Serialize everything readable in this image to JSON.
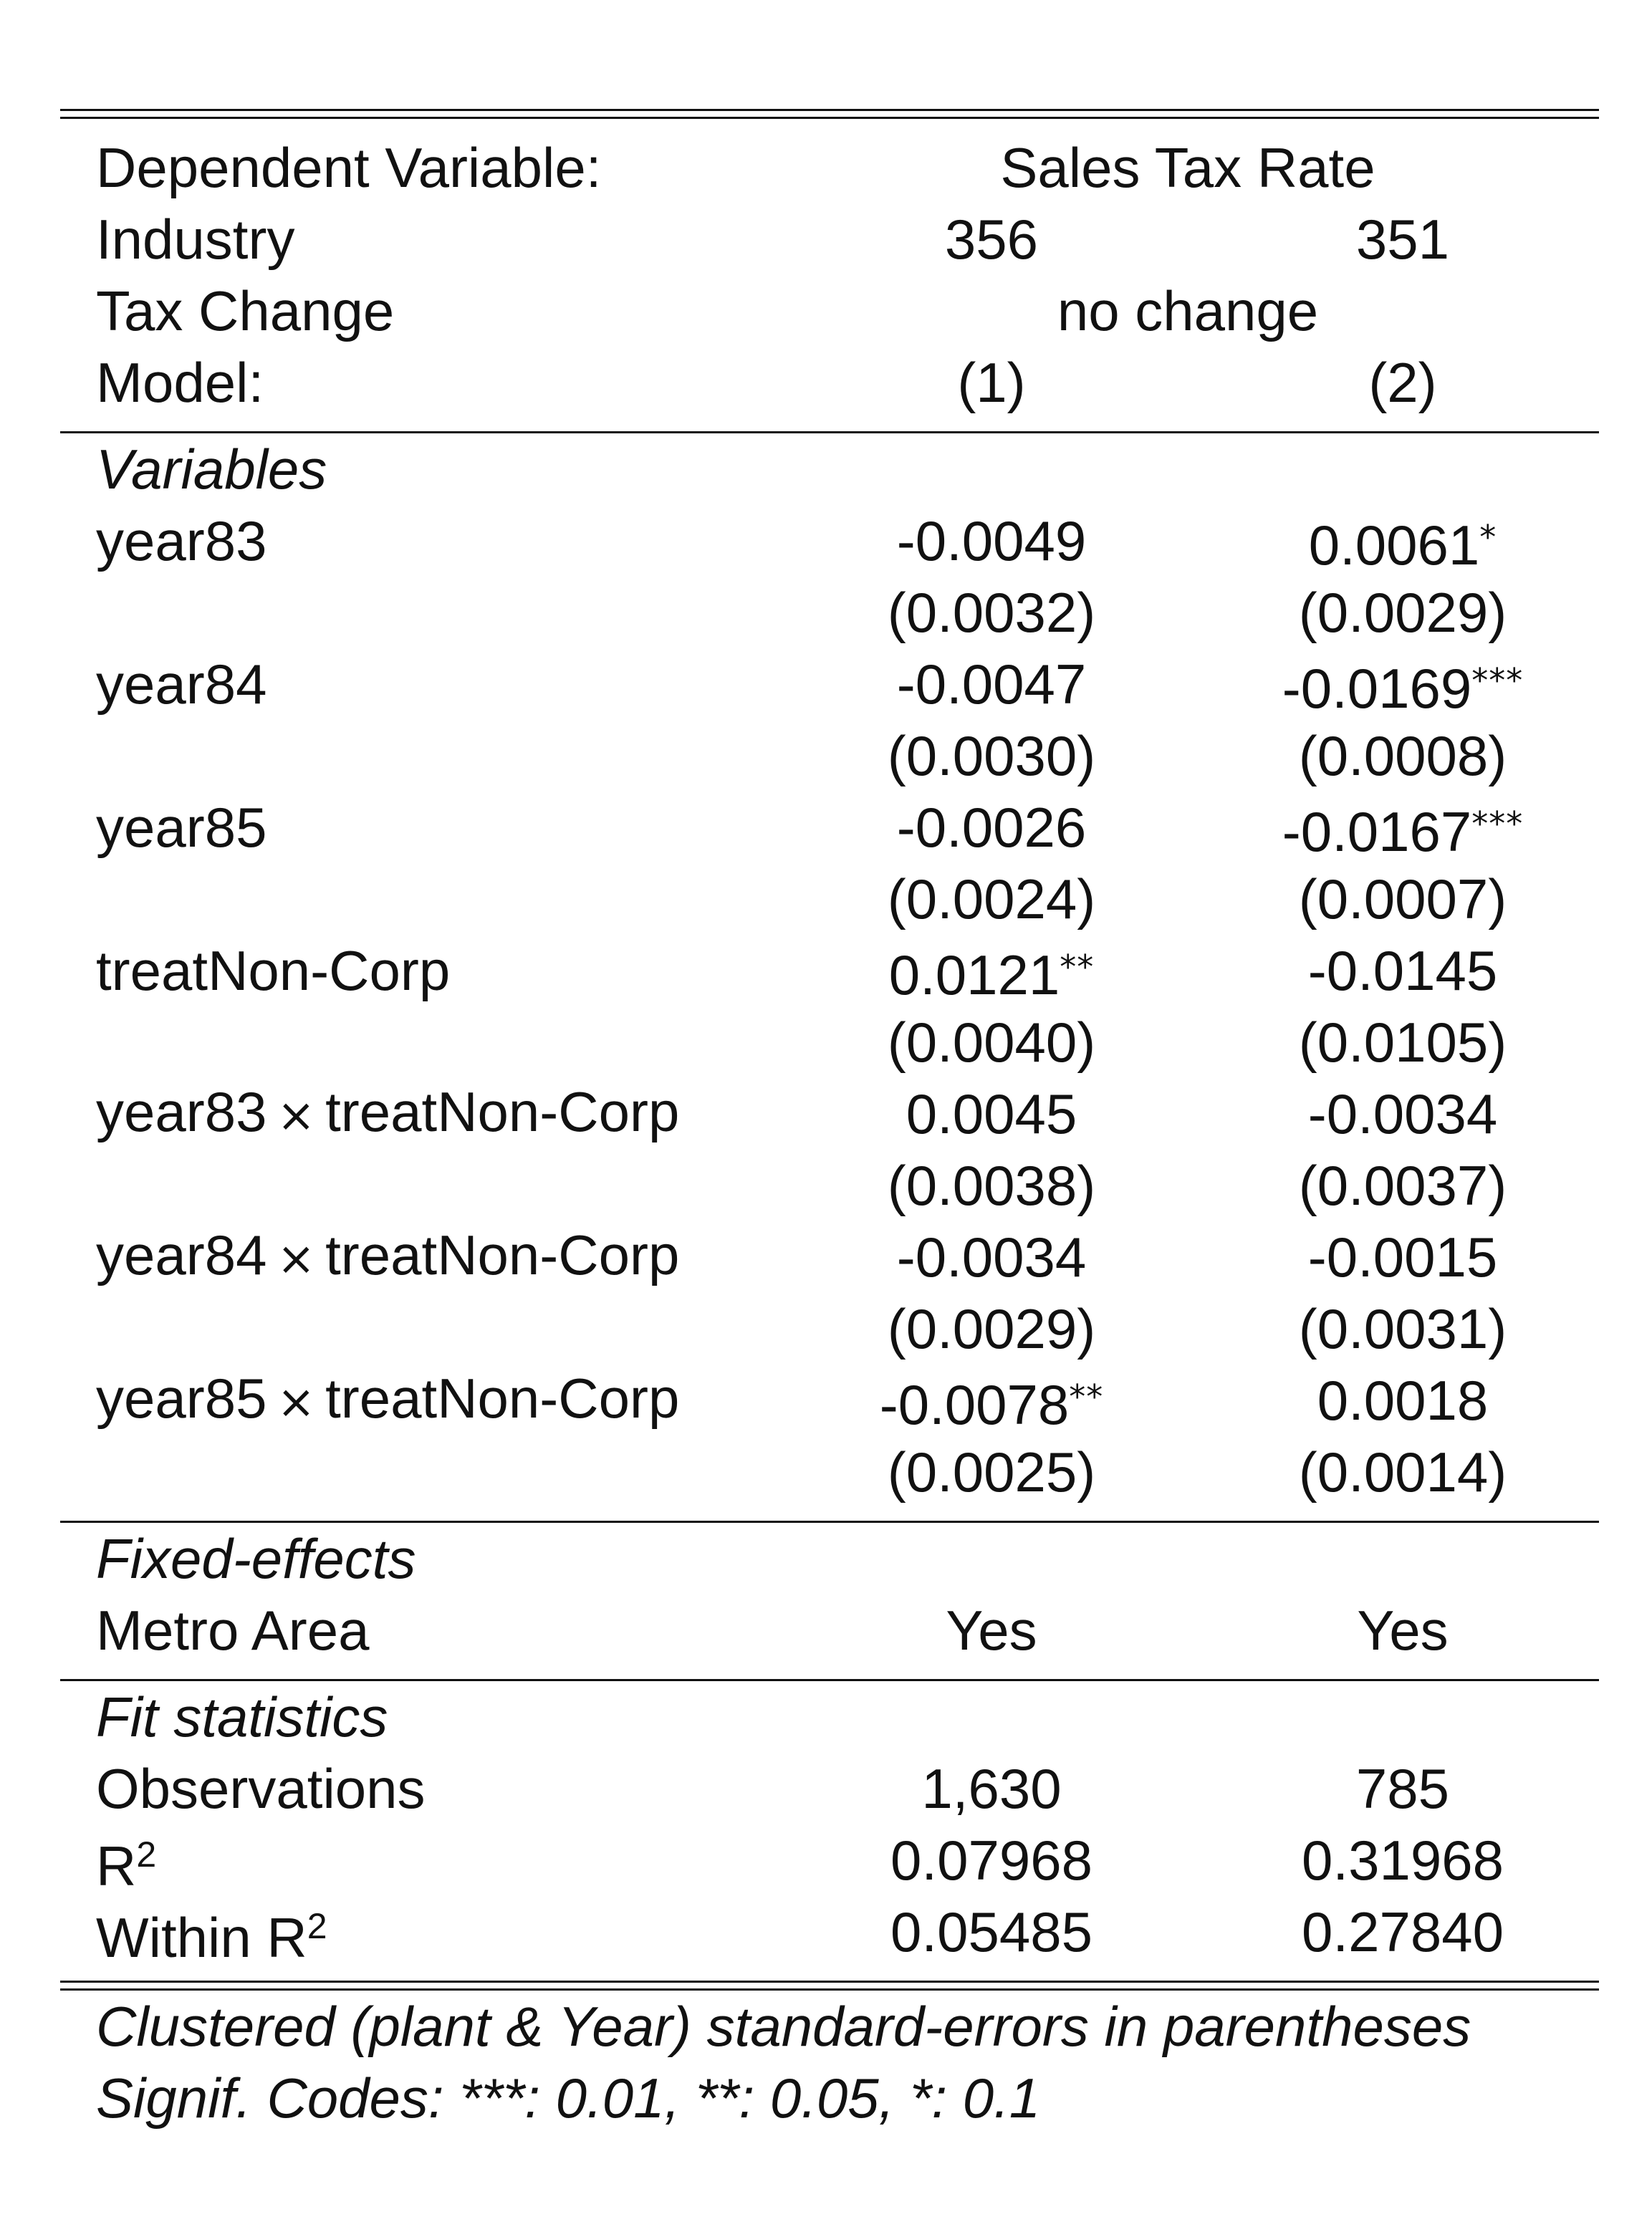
{
  "header": {
    "dep_var_label": "Dependent Variable:",
    "dep_var_value": "Sales Tax Rate",
    "industry_label": "Industry",
    "industry_values": [
      "356",
      "351"
    ],
    "tax_change_label": "Tax Change",
    "tax_change_value": "no change",
    "model_label": "Model:",
    "model_values": [
      "(1)",
      "(2)"
    ]
  },
  "variables": {
    "section_title": "Variables",
    "rows": [
      {
        "name": "year83",
        "interaction": "",
        "coef": [
          "-0.0049",
          "0.0061"
        ],
        "stars": [
          "",
          "*"
        ],
        "se": [
          "(0.0032)",
          "(0.0029)"
        ]
      },
      {
        "name": "year84",
        "interaction": "",
        "coef": [
          "-0.0047",
          "-0.0169"
        ],
        "stars": [
          "",
          "***"
        ],
        "se": [
          "(0.0030)",
          "(0.0008)"
        ]
      },
      {
        "name": "year85",
        "interaction": "",
        "coef": [
          "-0.0026",
          "-0.0167"
        ],
        "stars": [
          "",
          "***"
        ],
        "se": [
          "(0.0024)",
          "(0.0007)"
        ]
      },
      {
        "name": "treatNon-Corp",
        "interaction": "",
        "coef": [
          "0.0121",
          "-0.0145"
        ],
        "stars": [
          "**",
          ""
        ],
        "se": [
          "(0.0040)",
          "(0.0105)"
        ]
      },
      {
        "name": "year83",
        "interaction": "treatNon-Corp",
        "coef": [
          "0.0045",
          "-0.0034"
        ],
        "stars": [
          "",
          ""
        ],
        "se": [
          "(0.0038)",
          "(0.0037)"
        ]
      },
      {
        "name": "year84",
        "interaction": "treatNon-Corp",
        "coef": [
          "-0.0034",
          "-0.0015"
        ],
        "stars": [
          "",
          ""
        ],
        "se": [
          "(0.0029)",
          "(0.0031)"
        ]
      },
      {
        "name": "year85",
        "interaction": "treatNon-Corp",
        "coef": [
          "-0.0078",
          "0.0018"
        ],
        "stars": [
          "**",
          ""
        ],
        "se": [
          "(0.0025)",
          "(0.0014)"
        ]
      }
    ],
    "times_symbol": "×"
  },
  "fixed_effects": {
    "section_title": "Fixed-effects",
    "rows": [
      {
        "name": "Metro Area",
        "values": [
          "Yes",
          "Yes"
        ]
      }
    ]
  },
  "fit_statistics": {
    "section_title": "Fit statistics",
    "observations": {
      "label": "Observations",
      "values": [
        "1,630",
        "785"
      ]
    },
    "r2": {
      "label": "R",
      "sup": "2",
      "values": [
        "0.07968",
        "0.31968"
      ]
    },
    "within_r2": {
      "label": "Within R",
      "sup": "2",
      "values": [
        "0.05485",
        "0.27840"
      ]
    }
  },
  "notes": {
    "line1": "Clustered (plant & Year) standard-errors in parentheses",
    "line2": "Signif. Codes: ***: 0.01, **: 0.05, *: 0.1"
  }
}
